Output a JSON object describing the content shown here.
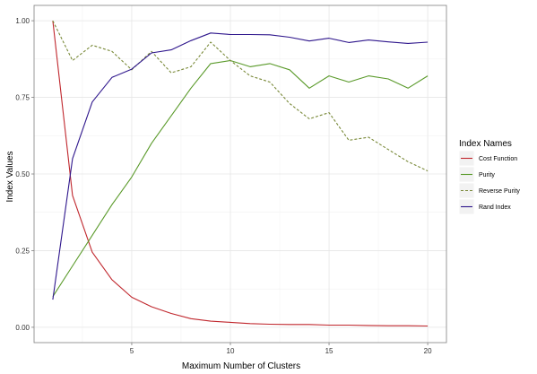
{
  "chart_data": {
    "type": "line",
    "xlabel": "Maximum Number of Clusters",
    "ylabel": "Index Values",
    "xlim": [
      0.05,
      20.95
    ],
    "ylim": [
      -0.05,
      1.05
    ],
    "x_ticks": [
      5,
      10,
      15,
      20
    ],
    "x_tick_labels": [
      "5",
      "10",
      "15",
      "20"
    ],
    "x_minor_ticks": [
      2.5,
      7.5,
      12.5,
      17.5
    ],
    "y_ticks": [
      0,
      0.25,
      0.5,
      0.75,
      1.0
    ],
    "y_tick_labels": [
      "0.00",
      "0.25",
      "0.50",
      "0.75",
      "1.00"
    ],
    "y_minor_ticks": [
      0.125,
      0.375,
      0.625,
      0.875
    ],
    "grid": true,
    "legend": {
      "title": "Index Names",
      "position": "right"
    },
    "x": [
      1,
      2,
      3,
      4,
      5,
      6,
      7,
      8,
      9,
      10,
      11,
      12,
      13,
      14,
      15,
      16,
      17,
      18,
      19,
      20
    ],
    "series": [
      {
        "name": "Cost Function",
        "color": "#c0272d",
        "dash": "solid",
        "values": [
          1.0,
          0.43,
          0.245,
          0.155,
          0.098,
          0.067,
          0.045,
          0.028,
          0.02,
          0.016,
          0.012,
          0.01,
          0.009,
          0.009,
          0.007,
          0.007,
          0.006,
          0.005,
          0.005,
          0.004
        ]
      },
      {
        "name": "Purity",
        "color": "#5a9a2a",
        "dash": "solid",
        "values": [
          0.1,
          0.2,
          0.3,
          0.4,
          0.49,
          0.6,
          0.69,
          0.78,
          0.86,
          0.87,
          0.85,
          0.86,
          0.84,
          0.78,
          0.82,
          0.8,
          0.82,
          0.81,
          0.78,
          0.82
        ]
      },
      {
        "name": "Reverse Purity",
        "color": "#7a8a3a",
        "dash": "dashed",
        "values": [
          1.0,
          0.87,
          0.92,
          0.9,
          0.84,
          0.9,
          0.83,
          0.85,
          0.93,
          0.87,
          0.82,
          0.8,
          0.73,
          0.68,
          0.7,
          0.61,
          0.62,
          0.58,
          0.54,
          0.51
        ]
      },
      {
        "name": "Rand Index",
        "color": "#2e168c",
        "dash": "solid",
        "values": [
          0.09,
          0.55,
          0.735,
          0.815,
          0.842,
          0.895,
          0.905,
          0.935,
          0.96,
          0.955,
          0.955,
          0.954,
          0.946,
          0.934,
          0.943,
          0.929,
          0.937,
          0.931,
          0.926,
          0.93
        ]
      }
    ]
  }
}
